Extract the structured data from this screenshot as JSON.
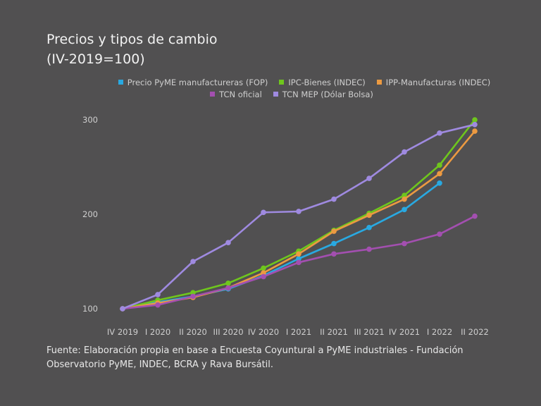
{
  "title_line1": "Precios y tipos de cambio",
  "title_line2": "(IV-2019=100)",
  "source": "Fuente: Elaboración propia en base a Encuesta Coyuntural a PyME industriales - Fundación Observatorio PyME, INDEC, BCRA y Rava Bursátil.",
  "chart_data": {
    "type": "line",
    "categories": [
      "IV 2019",
      "I 2020",
      "II 2020",
      "III 2020",
      "IV 2020",
      "I 2021",
      "II 2021",
      "III 2021",
      "IV 2021",
      "I 2022",
      "II 2022"
    ],
    "yticks": [
      100,
      200,
      300
    ],
    "ylim": [
      100,
      300
    ],
    "legend_position": "top",
    "series": [
      {
        "name": "Precio PyME manufactureras (FOP)",
        "color": "#29a9e1",
        "values": [
          100,
          107,
          113,
          121,
          135,
          153,
          169,
          186,
          205,
          233,
          null
        ]
      },
      {
        "name": "IPC-Bienes (INDEC)",
        "color": "#6fc61d",
        "values": [
          100,
          109,
          117,
          127,
          143,
          161,
          183,
          201,
          220,
          252,
          300
        ]
      },
      {
        "name": "IPP-Manufacturas (INDEC)",
        "color": "#ec9a41",
        "values": [
          100,
          106,
          112,
          122,
          138,
          158,
          182,
          199,
          216,
          243,
          288
        ]
      },
      {
        "name": "TCN oficial",
        "color": "#a34fb0",
        "values": [
          100,
          104,
          113,
          122,
          134,
          149,
          158,
          163,
          169,
          179,
          198
        ]
      },
      {
        "name": "TCN MEP (Dólar Bolsa)",
        "color": "#9f8ae0",
        "values": [
          100,
          115,
          150,
          170,
          202,
          203,
          216,
          238,
          266,
          286,
          295
        ]
      }
    ]
  }
}
